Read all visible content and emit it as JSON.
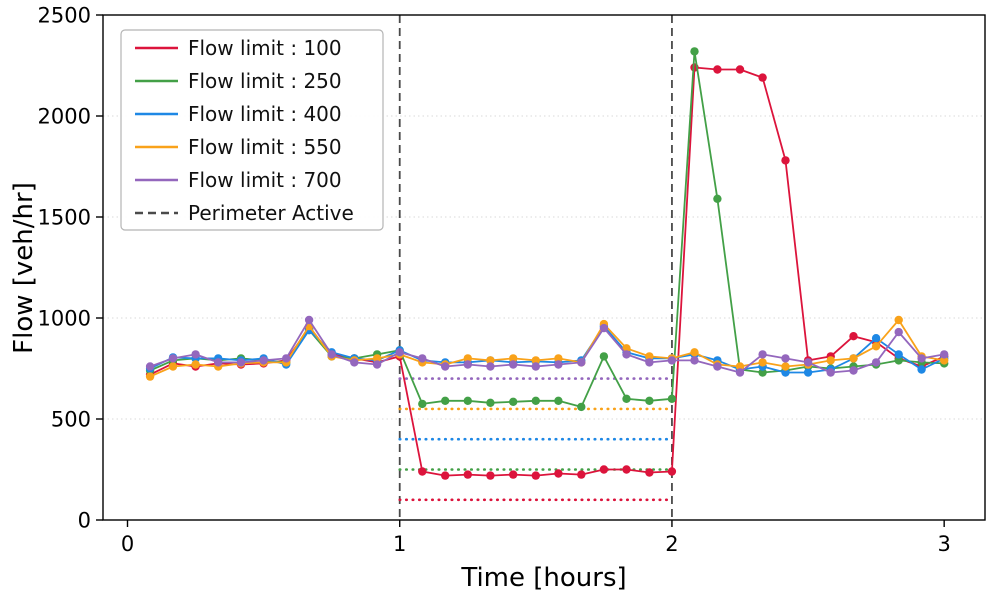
{
  "chart_data": {
    "type": "line",
    "title": "",
    "xlabel": "Time [hours]",
    "ylabel": "Flow [veh/hr]",
    "xlim": [
      -0.09,
      3.15
    ],
    "ylim": [
      0,
      2500
    ],
    "xticks": [
      0,
      1,
      2,
      3
    ],
    "yticks": [
      0,
      500,
      1000,
      1500,
      2000,
      2500
    ],
    "grid": {
      "axis": "y",
      "style": "dotted",
      "color": "#d9d9d9"
    },
    "legend": {
      "location": "upper left"
    },
    "perimeter": {
      "label": "Perimeter Active",
      "x_lines": [
        1,
        2
      ],
      "color": "#4a4a4a"
    },
    "limit_span": [
      1,
      2
    ],
    "x": [
      0.083,
      0.167,
      0.25,
      0.333,
      0.417,
      0.5,
      0.583,
      0.667,
      0.75,
      0.833,
      0.917,
      1.0,
      1.083,
      1.167,
      1.25,
      1.333,
      1.417,
      1.5,
      1.583,
      1.667,
      1.75,
      1.833,
      1.917,
      2.0,
      2.083,
      2.167,
      2.25,
      2.333,
      2.417,
      2.5,
      2.583,
      2.667,
      2.75,
      2.833,
      2.917,
      3.0
    ],
    "series": [
      {
        "name": "Flow limit : 100",
        "limit": 100,
        "color": "#dc143c",
        "values": [
          720,
          775,
          760,
          775,
          770,
          775,
          790,
          950,
          820,
          800,
          780,
          810,
          240,
          220,
          225,
          220,
          225,
          220,
          230,
          225,
          250,
          250,
          235,
          240,
          2240,
          2230,
          2230,
          2190,
          1780,
          790,
          810,
          910,
          880,
          800,
          760,
          810
        ]
      },
      {
        "name": "Flow limit : 250",
        "limit": 250,
        "color": "#43a047",
        "values": [
          740,
          790,
          800,
          790,
          800,
          790,
          780,
          940,
          810,
          800,
          820,
          840,
          575,
          590,
          590,
          580,
          585,
          590,
          590,
          560,
          810,
          600,
          590,
          600,
          2320,
          1590,
          745,
          730,
          740,
          760,
          750,
          760,
          770,
          790,
          780,
          775
        ]
      },
      {
        "name": "Flow limit : 400",
        "limit": 400,
        "color": "#1e88e5",
        "values": [
          750,
          805,
          800,
          800,
          790,
          800,
          770,
          940,
          830,
          800,
          790,
          840,
          790,
          780,
          780,
          790,
          780,
          785,
          780,
          790,
          960,
          830,
          800,
          800,
          820,
          790,
          745,
          760,
          730,
          730,
          745,
          800,
          900,
          820,
          745,
          800
        ]
      },
      {
        "name": "Flow limit : 550",
        "limit": 550,
        "color": "#f9a21a",
        "values": [
          710,
          760,
          770,
          760,
          775,
          780,
          780,
          960,
          810,
          790,
          800,
          820,
          780,
          770,
          800,
          790,
          800,
          790,
          800,
          780,
          970,
          850,
          810,
          800,
          830,
          770,
          760,
          780,
          760,
          770,
          790,
          800,
          860,
          990,
          810,
          790
        ]
      },
      {
        "name": "Flow limit : 700",
        "limit": 700,
        "color": "#9467bd",
        "values": [
          760,
          800,
          820,
          780,
          780,
          790,
          800,
          990,
          820,
          780,
          770,
          830,
          800,
          760,
          770,
          760,
          770,
          760,
          770,
          780,
          950,
          820,
          780,
          790,
          790,
          760,
          730,
          820,
          800,
          780,
          730,
          740,
          780,
          930,
          800,
          820
        ]
      }
    ]
  }
}
